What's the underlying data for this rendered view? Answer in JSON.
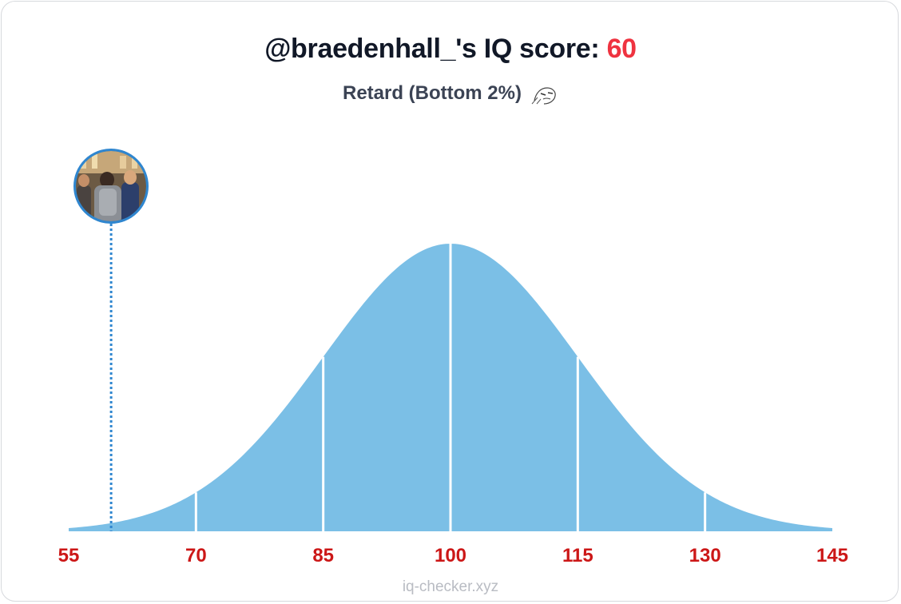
{
  "header": {
    "title_prefix": "@braedenhall_'s IQ score: ",
    "score": "60",
    "classification": "Retard (Bottom 2%)",
    "classification_icon": "wojak-face-icon"
  },
  "footer": {
    "site": "iq-checker.xyz"
  },
  "colors": {
    "curve": "#7bbfe6",
    "score": "#ef3340",
    "ticks": "#cc1717",
    "marker": "#2f86cf"
  },
  "chart_data": {
    "type": "area",
    "title": "",
    "distribution": "normal",
    "mean": 100,
    "sd": 15,
    "xlim": [
      55,
      145
    ],
    "x_ticks": [
      "55",
      "70",
      "85",
      "100",
      "115",
      "130",
      "145"
    ],
    "section_dividers": [
      70,
      85,
      100,
      115,
      130
    ],
    "marker": {
      "x": 60,
      "avatar": "profile-photo"
    },
    "grid": false,
    "legend": "none"
  }
}
